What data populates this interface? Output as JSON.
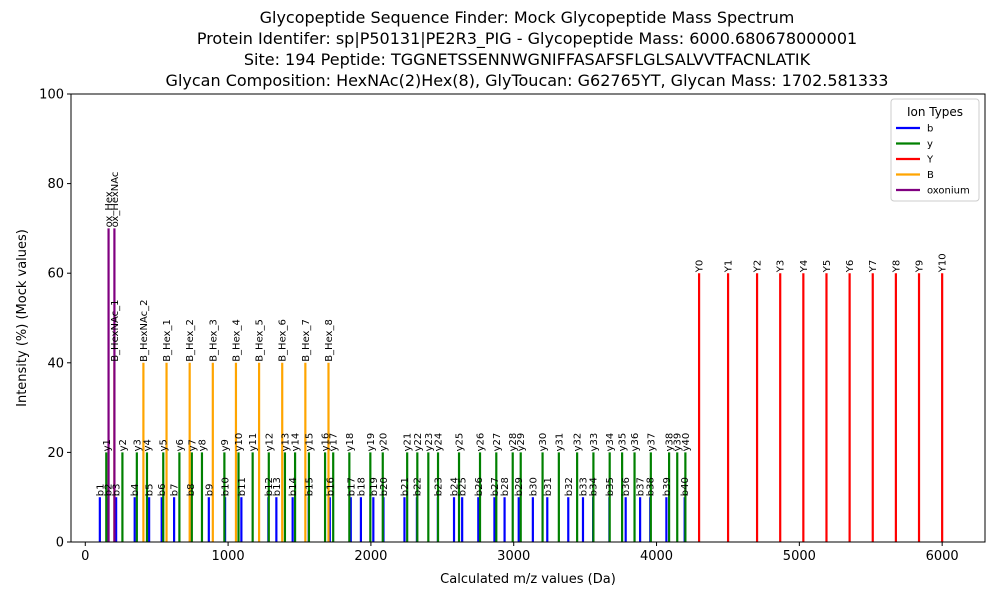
{
  "chart_data": {
    "type": "bar",
    "title_lines": [
      "Glycopeptide Sequence Finder: Mock Glycopeptide Mass Spectrum",
      "Protein Identifer: sp|P50131|PE2R3_PIG - Glycopeptide Mass: 6000.680678000001",
      "Site: 194 Peptide: TGGNETSSENNWGNIFFASAFSFLGLSALVVTFACNLATIK",
      "Glycan Composition: HexNAc(2)Hex(8), GlyToucan: G62765YT, Glycan Mass: 1702.581333"
    ],
    "xlabel": "Calculated m/z values (Da)",
    "ylabel": "Intensity (%) (Mock values)",
    "xlim": [
      -100,
      6300
    ],
    "ylim": [
      0,
      100
    ],
    "x_ticks": [
      0,
      1000,
      2000,
      3000,
      4000,
      5000,
      6000
    ],
    "y_ticks": [
      0,
      20,
      40,
      60,
      80,
      100
    ],
    "legend": {
      "title": "Ion Types",
      "position": "top-right",
      "entries": [
        {
          "label": "b",
          "color": "#0000ff"
        },
        {
          "label": "y",
          "color": "#008000"
        },
        {
          "label": "Y",
          "color": "#ff0000"
        },
        {
          "label": "B",
          "color": "#ffa500"
        },
        {
          "label": "oxonium",
          "color": "#800080"
        }
      ]
    },
    "series": [
      {
        "name": "b",
        "color": "#0000ff",
        "intensity": 10,
        "peaks": [
          {
            "label": "b1",
            "x": 102
          },
          {
            "label": "b2",
            "x": 159
          },
          {
            "label": "b3",
            "x": 216
          },
          {
            "label": "b4",
            "x": 346
          },
          {
            "label": "b5",
            "x": 447
          },
          {
            "label": "b6",
            "x": 535
          },
          {
            "label": "b7",
            "x": 622
          },
          {
            "label": "b8",
            "x": 736
          },
          {
            "label": "b9",
            "x": 865
          },
          {
            "label": "b10",
            "x": 979
          },
          {
            "label": "b11",
            "x": 1093
          },
          {
            "label": "b12",
            "x": 1282
          },
          {
            "label": "b13",
            "x": 1338
          },
          {
            "label": "b14",
            "x": 1452
          },
          {
            "label": "b15",
            "x": 1565
          },
          {
            "label": "b16",
            "x": 1712
          },
          {
            "label": "b17",
            "x": 1859
          },
          {
            "label": "b18",
            "x": 1930
          },
          {
            "label": "b19",
            "x": 2017
          },
          {
            "label": "b20",
            "x": 2088
          },
          {
            "label": "b21",
            "x": 2235
          },
          {
            "label": "b22",
            "x": 2322
          },
          {
            "label": "b23",
            "x": 2469
          },
          {
            "label": "b24",
            "x": 2582
          },
          {
            "label": "b25",
            "x": 2639
          },
          {
            "label": "b26",
            "x": 2752
          },
          {
            "label": "b27",
            "x": 2865
          },
          {
            "label": "b28",
            "x": 2936
          },
          {
            "label": "b29",
            "x": 3035
          },
          {
            "label": "b30",
            "x": 3134
          },
          {
            "label": "b31",
            "x": 3235
          },
          {
            "label": "b32",
            "x": 3382
          },
          {
            "label": "b33",
            "x": 3485
          },
          {
            "label": "b34",
            "x": 3556
          },
          {
            "label": "b35",
            "x": 3670
          },
          {
            "label": "b36",
            "x": 3784
          },
          {
            "label": "b37",
            "x": 3885
          },
          {
            "label": "b38",
            "x": 3956
          },
          {
            "label": "b39",
            "x": 4069
          },
          {
            "label": "b40",
            "x": 4197
          }
        ]
      },
      {
        "name": "y",
        "color": "#008000",
        "intensity": 20,
        "peaks": [
          {
            "label": "y1",
            "x": 147
          },
          {
            "label": "y2",
            "x": 260
          },
          {
            "label": "y3",
            "x": 361
          },
          {
            "label": "y4",
            "x": 432
          },
          {
            "label": "y5",
            "x": 546
          },
          {
            "label": "y6",
            "x": 659
          },
          {
            "label": "y7",
            "x": 746
          },
          {
            "label": "y8",
            "x": 817
          },
          {
            "label": "y9",
            "x": 974
          },
          {
            "label": "y10",
            "x": 1073
          },
          {
            "label": "y11",
            "x": 1172
          },
          {
            "label": "y12",
            "x": 1285
          },
          {
            "label": "y13",
            "x": 1398
          },
          {
            "label": "y14",
            "x": 1469
          },
          {
            "label": "y15",
            "x": 1566
          },
          {
            "label": "y16",
            "x": 1679
          },
          {
            "label": "y17",
            "x": 1736
          },
          {
            "label": "y18",
            "x": 1849
          },
          {
            "label": "y19",
            "x": 1996
          },
          {
            "label": "y20",
            "x": 2083
          },
          {
            "label": "y21",
            "x": 2254
          },
          {
            "label": "y22",
            "x": 2325
          },
          {
            "label": "y23",
            "x": 2402
          },
          {
            "label": "y24",
            "x": 2470
          },
          {
            "label": "y25",
            "x": 2617
          },
          {
            "label": "y26",
            "x": 2764
          },
          {
            "label": "y27",
            "x": 2878
          },
          {
            "label": "y28",
            "x": 2993
          },
          {
            "label": "y29",
            "x": 3049
          },
          {
            "label": "y30",
            "x": 3202
          },
          {
            "label": "y31",
            "x": 3316
          },
          {
            "label": "y32",
            "x": 3444
          },
          {
            "label": "y33",
            "x": 3558
          },
          {
            "label": "y34",
            "x": 3672
          },
          {
            "label": "y35",
            "x": 3759
          },
          {
            "label": "y36",
            "x": 3846
          },
          {
            "label": "y37",
            "x": 3960
          },
          {
            "label": "y38",
            "x": 4088
          },
          {
            "label": "y39",
            "x": 4145
          },
          {
            "label": "y40",
            "x": 4202
          }
        ]
      },
      {
        "name": "Y",
        "color": "#ff0000",
        "intensity": 60,
        "peaks": [
          {
            "label": "Y0",
            "x": 4298
          },
          {
            "label": "Y1",
            "x": 4501
          },
          {
            "label": "Y2",
            "x": 4704
          },
          {
            "label": "Y3",
            "x": 4866
          },
          {
            "label": "Y4",
            "x": 5028
          },
          {
            "label": "Y5",
            "x": 5190
          },
          {
            "label": "Y6",
            "x": 5352
          },
          {
            "label": "Y7",
            "x": 5514
          },
          {
            "label": "Y8",
            "x": 5676
          },
          {
            "label": "Y9",
            "x": 5838
          },
          {
            "label": "Y10",
            "x": 6000
          }
        ]
      },
      {
        "name": "B",
        "color": "#ffa500",
        "intensity": 40,
        "peaks": [
          {
            "label": "B_HexNAc_1",
            "x": 204
          },
          {
            "label": "B_HexNAc_2",
            "x": 407
          },
          {
            "label": "B_Hex_1",
            "x": 569
          },
          {
            "label": "B_Hex_2",
            "x": 731
          },
          {
            "label": "B_Hex_3",
            "x": 893
          },
          {
            "label": "B_Hex_4",
            "x": 1055
          },
          {
            "label": "B_Hex_5",
            "x": 1217
          },
          {
            "label": "B_Hex_6",
            "x": 1379
          },
          {
            "label": "B_Hex_7",
            "x": 1541
          },
          {
            "label": "B_Hex_8",
            "x": 1703
          }
        ]
      },
      {
        "name": "oxonium",
        "color": "#800080",
        "intensity": 70,
        "peaks": [
          {
            "label": "ox_Hex",
            "x": 163
          },
          {
            "label": "ox_HexNAc",
            "x": 204
          }
        ]
      }
    ]
  }
}
